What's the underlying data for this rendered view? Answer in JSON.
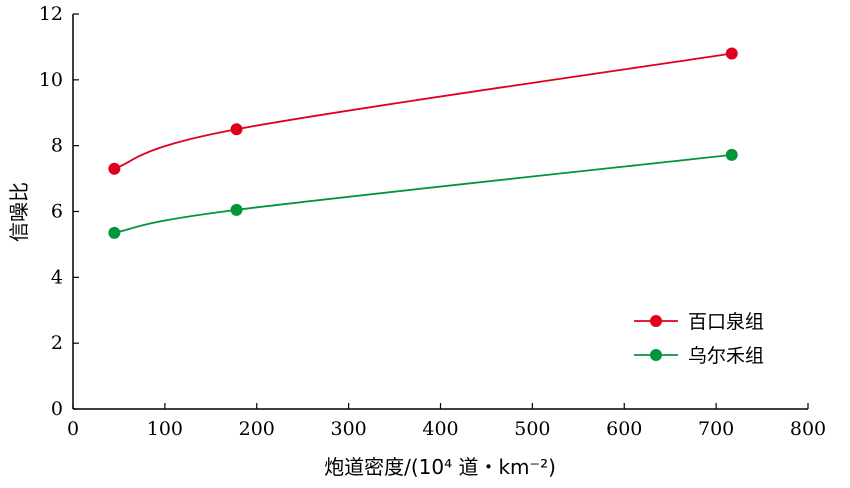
{
  "chart_data": {
    "type": "line",
    "xlabel": "炮道密度/(10⁴ 道・km⁻²)",
    "ylabel": "信噪比",
    "xlim": [
      0,
      800
    ],
    "ylim": [
      0,
      12
    ],
    "xticks": [
      0,
      100,
      200,
      300,
      400,
      500,
      600,
      700,
      800
    ],
    "yticks": [
      0,
      2,
      4,
      6,
      8,
      10,
      12
    ],
    "grid": false,
    "legend_position": "bottom-right",
    "series": [
      {
        "name": "百口泉组",
        "color": "#e0001b",
        "x": [
          45,
          178,
          717
        ],
        "y": [
          7.3,
          8.5,
          10.8
        ]
      },
      {
        "name": "乌尔禾组",
        "color": "#00973a",
        "x": [
          45,
          178,
          717
        ],
        "y": [
          5.35,
          6.05,
          7.72
        ]
      }
    ]
  }
}
